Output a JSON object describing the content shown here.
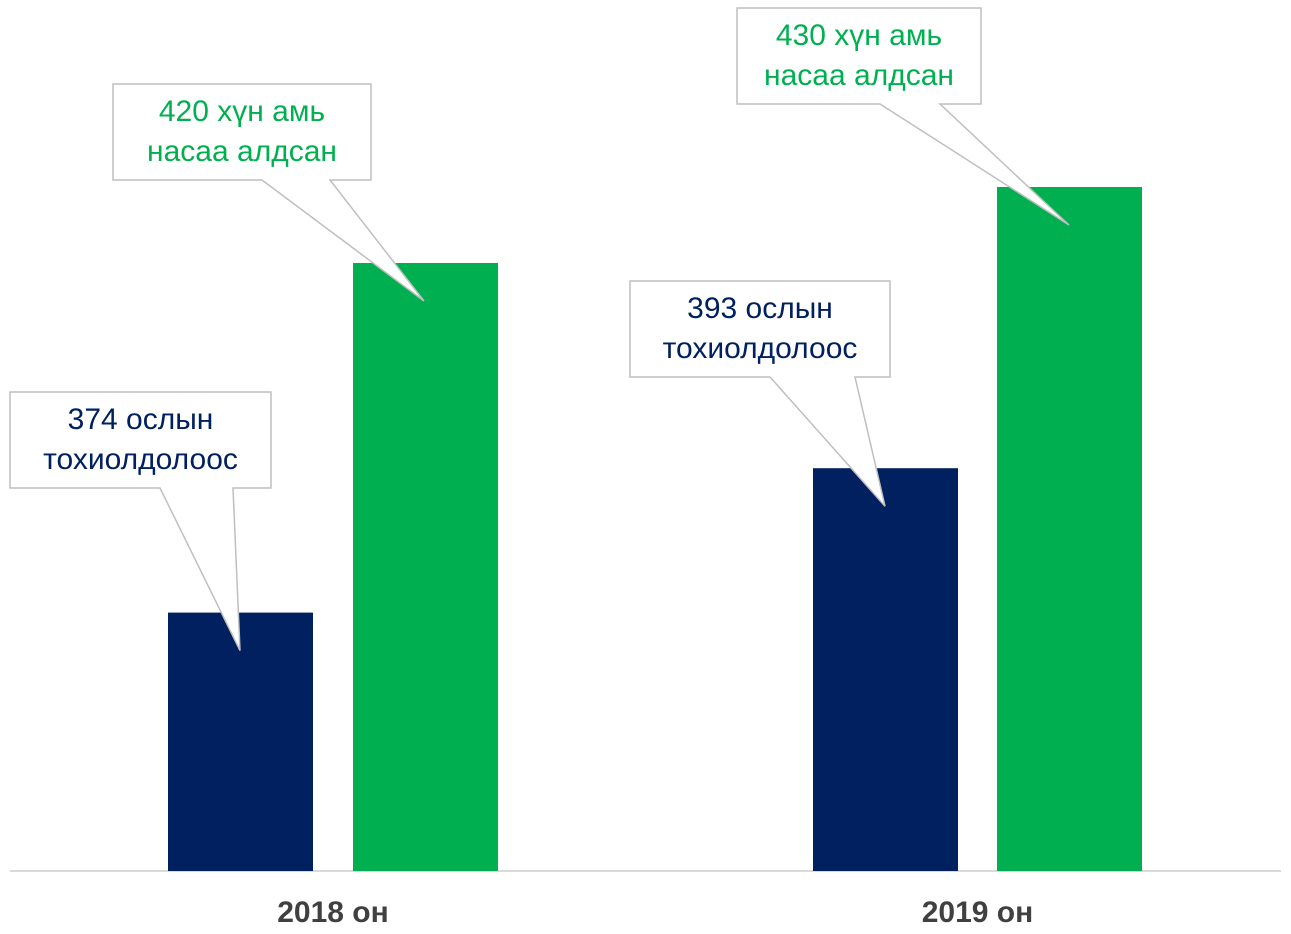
{
  "chart_data": {
    "type": "bar",
    "categories": [
      "2018 он",
      "2019 он"
    ],
    "series": [
      {
        "color": "#002060",
        "values": [
          374,
          393
        ],
        "value_labels": [
          "374 ослын тохиолдолоос",
          "393 ослын тохиолдолоос"
        ]
      },
      {
        "color": "#00b050",
        "values": [
          420,
          430
        ],
        "value_labels": [
          "420 хүн амь насаа алдсан",
          "430 хүн амь насаа алдсан"
        ]
      }
    ],
    "ylim": [
      340,
      450
    ]
  }
}
